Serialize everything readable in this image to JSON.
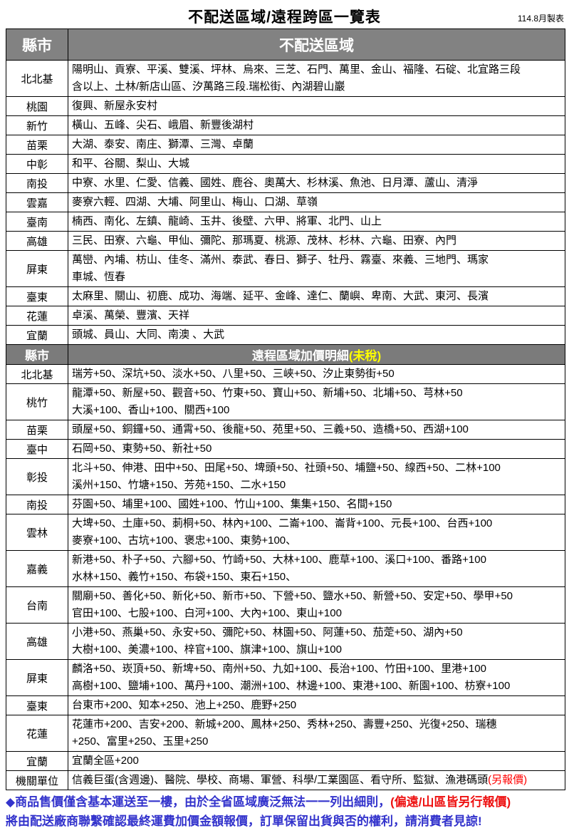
{
  "title": "不配送區域/遠程跨區一覽表",
  "date_note": "114.8月製表",
  "colors": {
    "header_bg": "#808080",
    "header_text": "#ffffff",
    "highlight_yellow": "#ffff00",
    "alert_red": "#ff0000",
    "footer_blue": "#3333cc"
  },
  "section1": {
    "header": {
      "col1": "縣市",
      "col2": "不配送區域"
    },
    "rows": [
      {
        "county": "北北基",
        "areas": "陽明山、貢寮、平溪、雙溪、坪林、烏來、三芝、石門、萬里、金山、福隆、石碇、北宜路三段\n含以上、土林/新店山區、汐萬路三段.瑞松街、內湖碧山巖"
      },
      {
        "county": "桃園",
        "areas": "復興、新屋永安村"
      },
      {
        "county": "新竹",
        "areas": "橫山、五峰、尖石、峨眉、新豐後湖村"
      },
      {
        "county": "苗栗",
        "areas": "大湖、泰安、南庄、獅潭、三灣、卓蘭"
      },
      {
        "county": "中彰",
        "areas": "和平、谷關、梨山、大城"
      },
      {
        "county": "南投",
        "areas": "中寮、水里、仁愛、信義、國姓、鹿谷、奧萬大、杉林溪、魚池、日月潭、蘆山、清淨"
      },
      {
        "county": "雲嘉",
        "areas": "麥寮六輕、四湖、大埔、阿里山、梅山、口湖、草嶺"
      },
      {
        "county": "臺南",
        "areas": "楠西、南化、左鎮、龍崎、玉井、後壁、六甲、將軍、北門、山上"
      },
      {
        "county": "高雄",
        "areas": "三民、田寮、六龜、甲仙、彌陀、那瑪夏、桃源、茂林、杉林、六龜、田寮、內門"
      },
      {
        "county": "屏東",
        "areas": "萬巒、內埔、枋山、佳冬、滿州、泰武、春日、獅子、牡丹、霧臺、來義、三地門、瑪家\n車城、恆春"
      },
      {
        "county": "臺東",
        "areas": "太麻里、關山、初鹿、成功、海端、延平、金峰、達仁、蘭嶼、卑南、大武、東河、長濱"
      },
      {
        "county": "花蓮",
        "areas": "卓溪、萬榮、豐濱、天祥"
      },
      {
        "county": "宜蘭",
        "areas": "頭城、員山、大同、南澳 、大武"
      }
    ]
  },
  "section2": {
    "header": {
      "col1": "縣市",
      "col2_white": "遠程區域加價明細",
      "col2_yellow": "(未稅)"
    },
    "rows": [
      {
        "county": "北北基",
        "areas": "瑞芳+50、深坑+50、淡水+50、八里+50、三峽+50、汐止東勢街+50"
      },
      {
        "county": "桃竹",
        "areas": "龍潭+50、新屋+50、觀音+50、竹東+50、寶山+50、新埔+50、北埔+50、芎林+50\n大溪+100、香山+100、關西+100"
      },
      {
        "county": "苗栗",
        "areas": "頭屋+50、銅鑼+50、通霄+50、後龍+50、苑里+50、三義+50、造橋+50、西湖+100"
      },
      {
        "county": "臺中",
        "areas": "石岡+50、東勢+50、新社+50"
      },
      {
        "county": "彰投",
        "areas": "北斗+50、伸港、田中+50、田尾+50、埤頭+50、社頭+50、埔鹽+50、線西+50、二林+100\n溪州+150、竹塘+150、芳苑+150、二水+150"
      },
      {
        "county": "南投",
        "areas": "芬園+50、埔里+100、國姓+100、竹山+100、集集+150、名間+150"
      },
      {
        "county": "雲林",
        "areas": "大埤+50、土庫+50、莿桐+50、林內+100、二崙+100、崙背+100、元長+100、台西+100\n麥寮+100、古坑+100、褒忠+100、東勢+100、"
      },
      {
        "county": "嘉義",
        "areas": "新港+50、朴子+50、六腳+50、竹崎+50、大林+100、鹿草+100、溪口+100、番路+100\n水林+150、義竹+150、布袋+150、東石+150、"
      },
      {
        "county": "台南",
        "areas": "關廟+50、善化+50、新化+50、新市+50、下營+50、鹽水+50、新營+50、安定+50、學甲+50\n官田+100、七股+100、白河+100、大內+100、東山+100"
      },
      {
        "county": "高雄",
        "areas": "小港+50、燕巢+50、永安+50、彌陀+50、林園+50、阿蓮+50、茄萣+50、湖內+50\n大樹+100、美濃+100、梓官+100、旗津+100、旗山+100"
      },
      {
        "county": "屏東",
        "areas": "麟洛+50、崁頂+50、新埤+50、南州+50、九如+100、長治+100、竹田+100、里港+100\n高樹+100、鹽埔+100、萬丹+100、潮洲+100、林邊+100、東港+100、新園+100、枋寮+100"
      },
      {
        "county": "臺東",
        "areas": "台東市+200、知本+250、池上+250、鹿野+250"
      },
      {
        "county": "花蓮",
        "areas": "花蓮市+200、吉安+200、新城+200、鳳林+250、秀林+250、壽豐+250、光復+250、瑞穗\n+250、富里+250、玉里+250"
      },
      {
        "county": "宜蘭",
        "areas": "宜蘭全區+200"
      },
      {
        "county": "機關單位",
        "areas": "信義巨蛋(含週邊)、醫院、學校、商場、軍營、科學/工業園區、看守所、監獄、漁港碼頭",
        "red_suffix": "(另報價)"
      }
    ]
  },
  "footer": {
    "line1_blue": "◆商品售價僅含基本運送至一樓，由於全省區域廣泛無法一一列出細則，",
    "line1_red": "(偏遠/山區皆另行報價)",
    "line2": "將由配送廠商聯繫確認最終運費加價金額報價，訂單保留出貨與否的權利，請消費者見諒!"
  }
}
